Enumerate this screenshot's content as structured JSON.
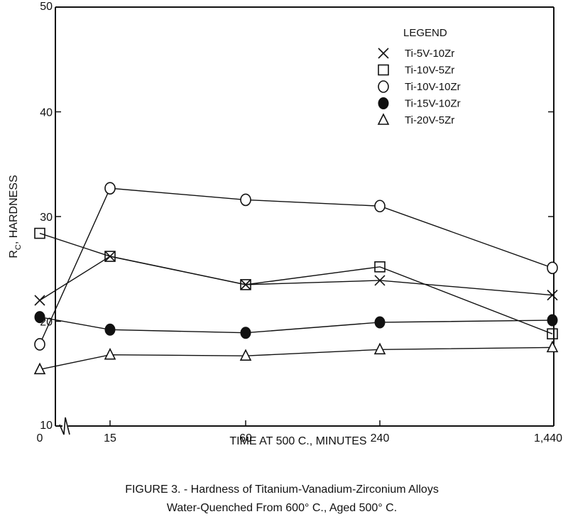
{
  "chart_data": {
    "type": "line",
    "x_categories": [
      "0",
      "15",
      "60",
      "240",
      "1,440"
    ],
    "ylim": [
      10,
      50
    ],
    "y_ticks": [
      "10",
      "20",
      "30",
      "40",
      "50"
    ],
    "xlabel": "TIME AT 500 C., MINUTES",
    "ylabel": "RC, HARDNESS",
    "ylabel_main": "R",
    "ylabel_sub": "C",
    "ylabel_rest": ", HARDNESS",
    "legend_title": "LEGEND",
    "legend_position": "top-right",
    "grid": false,
    "axis_break": "between 0 and 15",
    "series": [
      {
        "name": "Ti-5V-10Zr",
        "marker": "x",
        "values": [
          22.0,
          26.2,
          23.5,
          23.9,
          22.5
        ]
      },
      {
        "name": "Ti-10V-5Zr",
        "marker": "open-square",
        "values": [
          28.4,
          26.2,
          23.5,
          25.2,
          18.8
        ]
      },
      {
        "name": "Ti-10V-10Zr",
        "marker": "open-circle",
        "values": [
          17.8,
          32.7,
          31.6,
          31.0,
          25.1
        ]
      },
      {
        "name": "Ti-15V-10Zr",
        "marker": "filled-circle",
        "values": [
          20.4,
          19.2,
          18.9,
          19.9,
          20.1
        ]
      },
      {
        "name": "Ti-20V-5Zr",
        "marker": "open-triangle",
        "values": [
          15.4,
          16.8,
          16.7,
          17.3,
          17.5
        ]
      }
    ]
  },
  "caption": {
    "line1": "FIGURE 3. - Hardness of Titanium-Vanadium-Zirconium Alloys",
    "line2": "Water-Quenched From 600° C., Aged 500° C."
  }
}
